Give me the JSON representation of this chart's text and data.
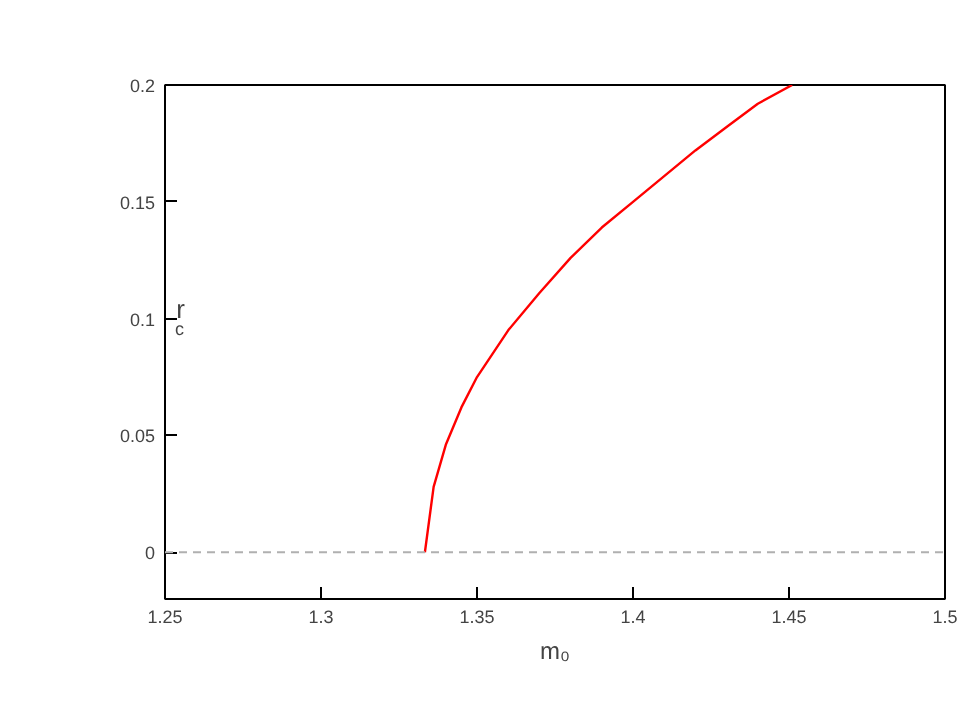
{
  "chart_data": {
    "type": "line",
    "xlabel": "m₀",
    "ylabel": "r$_{c}$",
    "xlim": [
      1.25,
      1.5
    ],
    "xticks": [
      1.25,
      1.3,
      1.35,
      1.4,
      1.45,
      1.5
    ],
    "ylim": [
      -0.02,
      0.2
    ],
    "yticks": [
      0,
      0.05,
      0.1,
      0.15,
      0.2
    ],
    "grid": false,
    "marker": "none",
    "line_style": "solid",
    "ref_lines": [
      {
        "axis": "y",
        "value": 0,
        "color": "#b0b0b0",
        "line_style": "dashed"
      }
    ],
    "series": [
      {
        "color": "#ff0000",
        "x": [
          1.3333,
          1.3361,
          1.34,
          1.345,
          1.35,
          1.36,
          1.37,
          1.38,
          1.39,
          1.4,
          1.41,
          1.42,
          1.43,
          1.44,
          1.451
        ],
        "values": [
          0,
          0.028,
          0.046,
          0.062,
          0.075,
          0.095,
          0.111,
          0.126,
          0.139,
          0.15,
          0.161,
          0.172,
          0.182,
          0.192,
          0.2
        ]
      }
    ]
  }
}
